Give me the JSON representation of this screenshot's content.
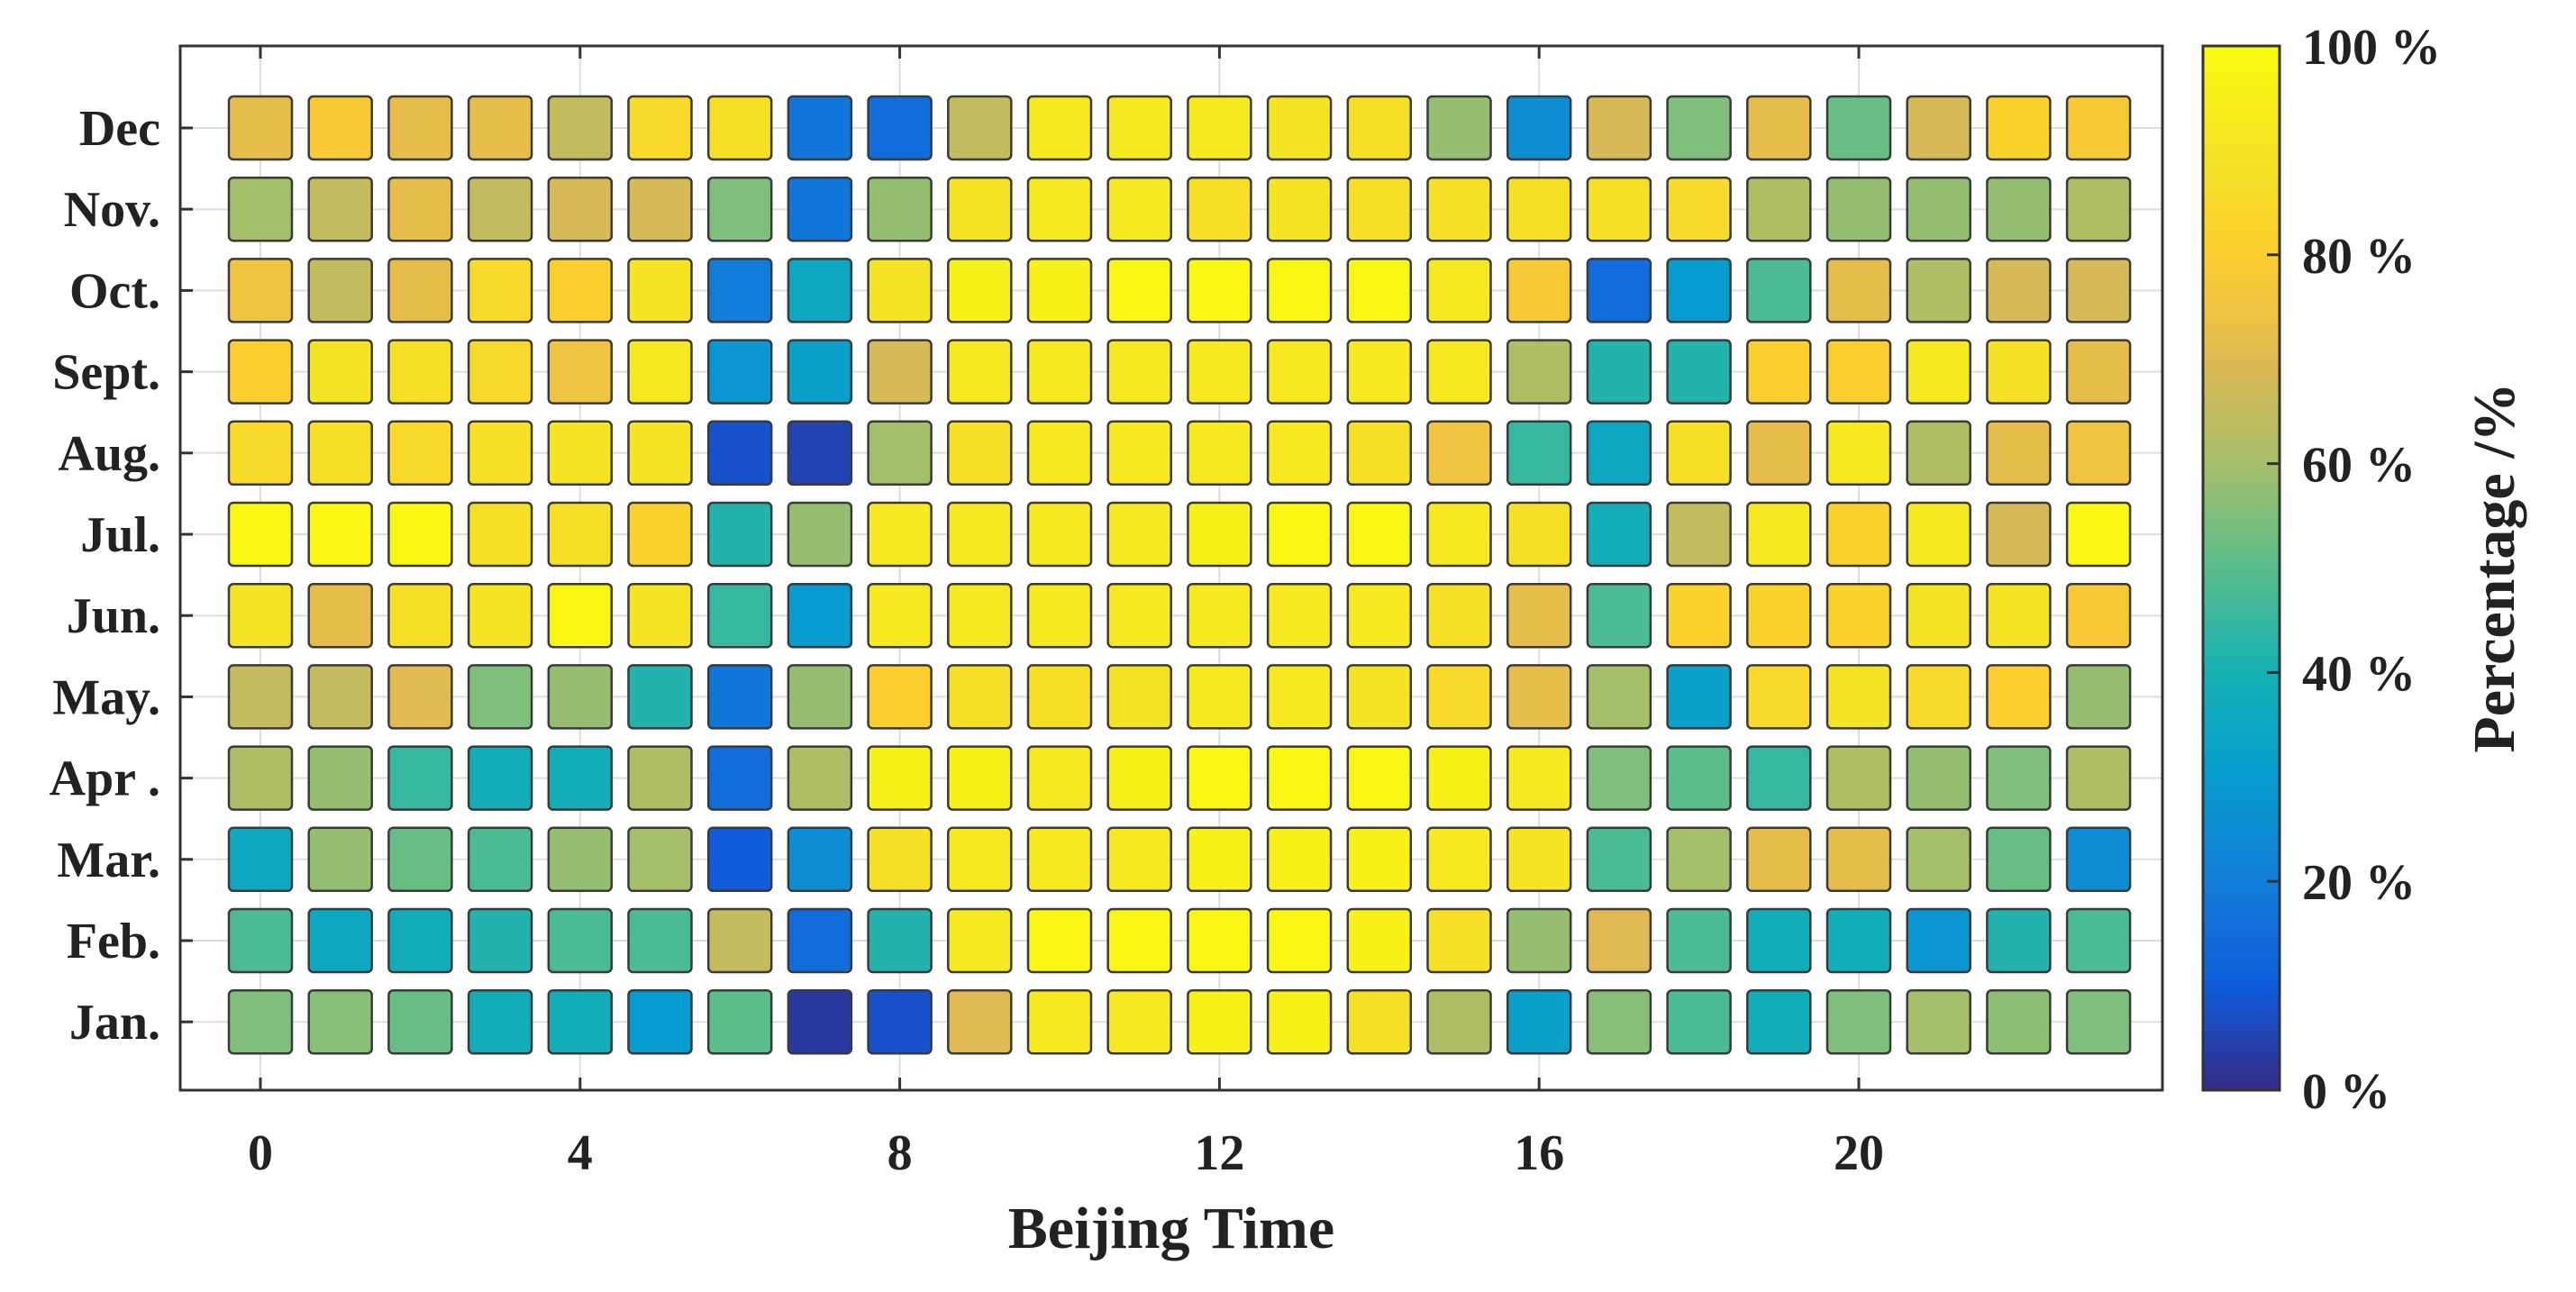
{
  "chart_data": {
    "type": "heatmap",
    "title": "",
    "xlabel": "Beijing Time",
    "ylabel": "",
    "colorbar_label": "Percentage /%",
    "x": [
      0,
      1,
      2,
      3,
      4,
      5,
      6,
      7,
      8,
      9,
      10,
      11,
      12,
      13,
      14,
      15,
      16,
      17,
      18,
      19,
      20,
      21,
      22,
      23
    ],
    "x_ticks": [
      0,
      4,
      8,
      12,
      16,
      20
    ],
    "x_tick_labels": [
      "0",
      "4",
      "8",
      "12",
      "16",
      "20"
    ],
    "y_categories": [
      "Jan.",
      "Feb.",
      "Mar.",
      "Apr .",
      "May.",
      "Jun.",
      "Jul.",
      "Aug.",
      "Sept.",
      "Oct.",
      "Nov.",
      "Dec"
    ],
    "colorbar_ticks": [
      0,
      20,
      40,
      60,
      80,
      100
    ],
    "colorbar_tick_labels": [
      "0 %",
      "20 %",
      "40 %",
      "60 %",
      "80 %",
      "100 %"
    ],
    "clim": [
      0,
      100
    ],
    "colormap": "parula",
    "grid": true,
    "values": [
      [
        55,
        56,
        52,
        38,
        38,
        30,
        50,
        3,
        8,
        70,
        92,
        92,
        95,
        95,
        88,
        62,
        32,
        56,
        48,
        38,
        55,
        60,
        57,
        55
      ],
      [
        48,
        35,
        38,
        42,
        48,
        48,
        65,
        15,
        42,
        92,
        98,
        98,
        98,
        98,
        95,
        88,
        58,
        70,
        48,
        38,
        38,
        28,
        42,
        48
      ],
      [
        35,
        58,
        52,
        48,
        58,
        60,
        10,
        25,
        88,
        92,
        92,
        92,
        95,
        95,
        95,
        92,
        90,
        48,
        60,
        72,
        72,
        60,
        52,
        25
      ],
      [
        62,
        58,
        45,
        38,
        38,
        62,
        15,
        62,
        95,
        95,
        92,
        95,
        98,
        98,
        98,
        95,
        92,
        55,
        50,
        45,
        62,
        58,
        55,
        62
      ],
      [
        65,
        65,
        70,
        55,
        58,
        42,
        18,
        58,
        80,
        88,
        88,
        90,
        92,
        92,
        90,
        85,
        72,
        60,
        32,
        85,
        90,
        85,
        80,
        58
      ],
      [
        90,
        72,
        88,
        90,
        98,
        90,
        45,
        30,
        92,
        92,
        92,
        92,
        92,
        92,
        92,
        88,
        72,
        48,
        82,
        82,
        82,
        90,
        90,
        78
      ],
      [
        98,
        98,
        98,
        88,
        88,
        82,
        42,
        58,
        92,
        92,
        92,
        92,
        95,
        98,
        98,
        92,
        88,
        38,
        65,
        92,
        82,
        92,
        68,
        98
      ],
      [
        85,
        88,
        85,
        88,
        90,
        90,
        8,
        5,
        60,
        88,
        92,
        92,
        92,
        92,
        88,
        75,
        45,
        35,
        88,
        72,
        92,
        62,
        72,
        75
      ],
      [
        80,
        90,
        88,
        85,
        75,
        92,
        28,
        32,
        68,
        92,
        92,
        92,
        92,
        92,
        92,
        92,
        62,
        42,
        42,
        80,
        80,
        92,
        88,
        72
      ],
      [
        75,
        65,
        72,
        85,
        80,
        90,
        20,
        35,
        90,
        95,
        95,
        98,
        98,
        98,
        98,
        92,
        78,
        15,
        30,
        48,
        72,
        62,
        68,
        68
      ],
      [
        60,
        65,
        72,
        65,
        68,
        68,
        55,
        18,
        58,
        90,
        92,
        92,
        88,
        90,
        88,
        88,
        88,
        88,
        85,
        62,
        58,
        58,
        58,
        62
      ],
      [
        72,
        78,
        72,
        72,
        65,
        85,
        88,
        18,
        15,
        65,
        92,
        92,
        92,
        90,
        88,
        58,
        25,
        68,
        55,
        72,
        52,
        68,
        82,
        78
      ]
    ]
  }
}
